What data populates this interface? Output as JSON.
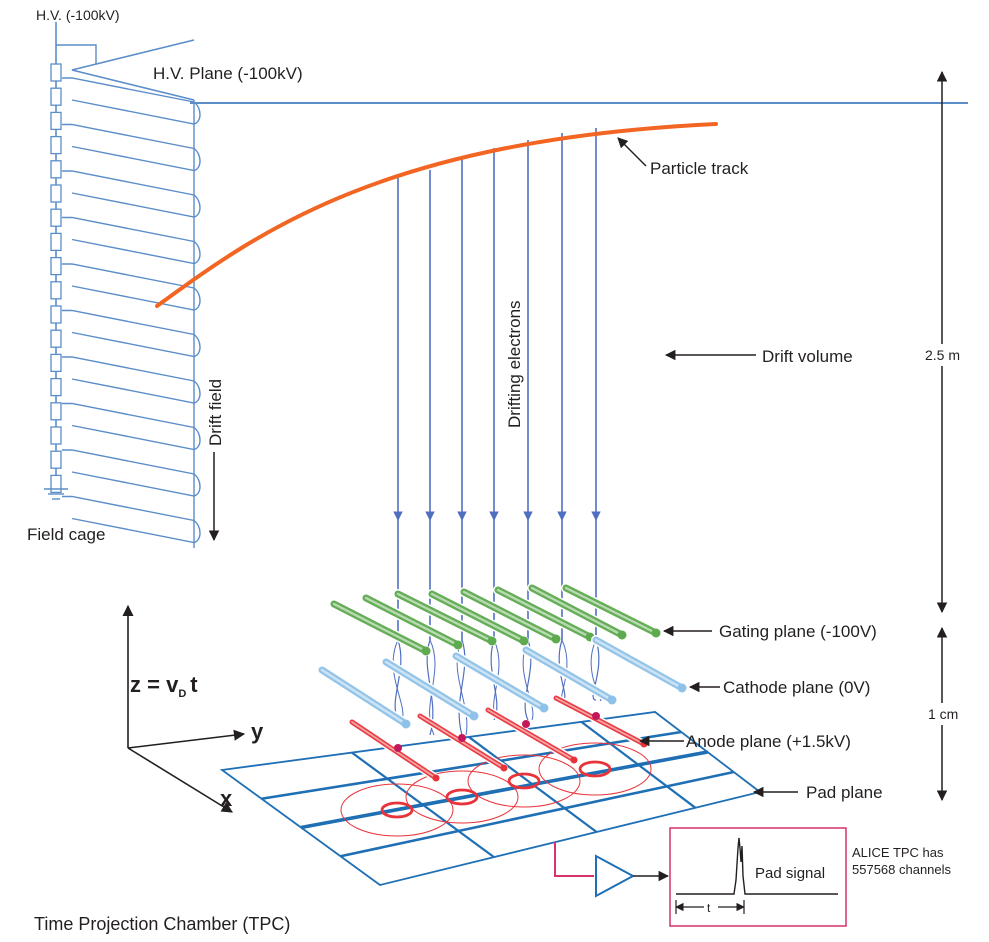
{
  "labels": {
    "hv_source": "H.V. (-100kV)",
    "hv_plane": "H.V. Plane (-100kV)",
    "particle_track": "Particle track",
    "drift_volume": "Drift volume",
    "drifting_electrons": "Drifting electrons",
    "drift_field": "Drift field",
    "field_cage": "Field cage",
    "gating_plane": "Gating plane (-100V)",
    "cathode_plane": "Cathode plane (0V)",
    "anode_plane": "Anode plane (+1.5kV)",
    "pad_plane": "Pad plane",
    "pad_signal": "Pad signal",
    "alice_line1": "ALICE TPC has",
    "alice_line2": "557568 channels",
    "dim_drift": "2.5 m",
    "dim_gap": "1 cm",
    "axis_z_main": "z = v",
    "axis_z_sub": "D",
    "axis_z_t": "t",
    "axis_y": "y",
    "axis_x": "x",
    "time_label": "t",
    "caption": "Time Projection Chamber (TPC)"
  },
  "colors": {
    "field_cage": "#5b8dc9",
    "track": "#f26522",
    "electrons": "#4f6fc0",
    "gating": "#5daa4f",
    "cathode": "#8fc2e8",
    "anode": "#e8333a",
    "pad": "#1f6fb5",
    "signal_box": "#d6336c",
    "amplifier": "#1f6fb5",
    "text": "#231f20"
  }
}
